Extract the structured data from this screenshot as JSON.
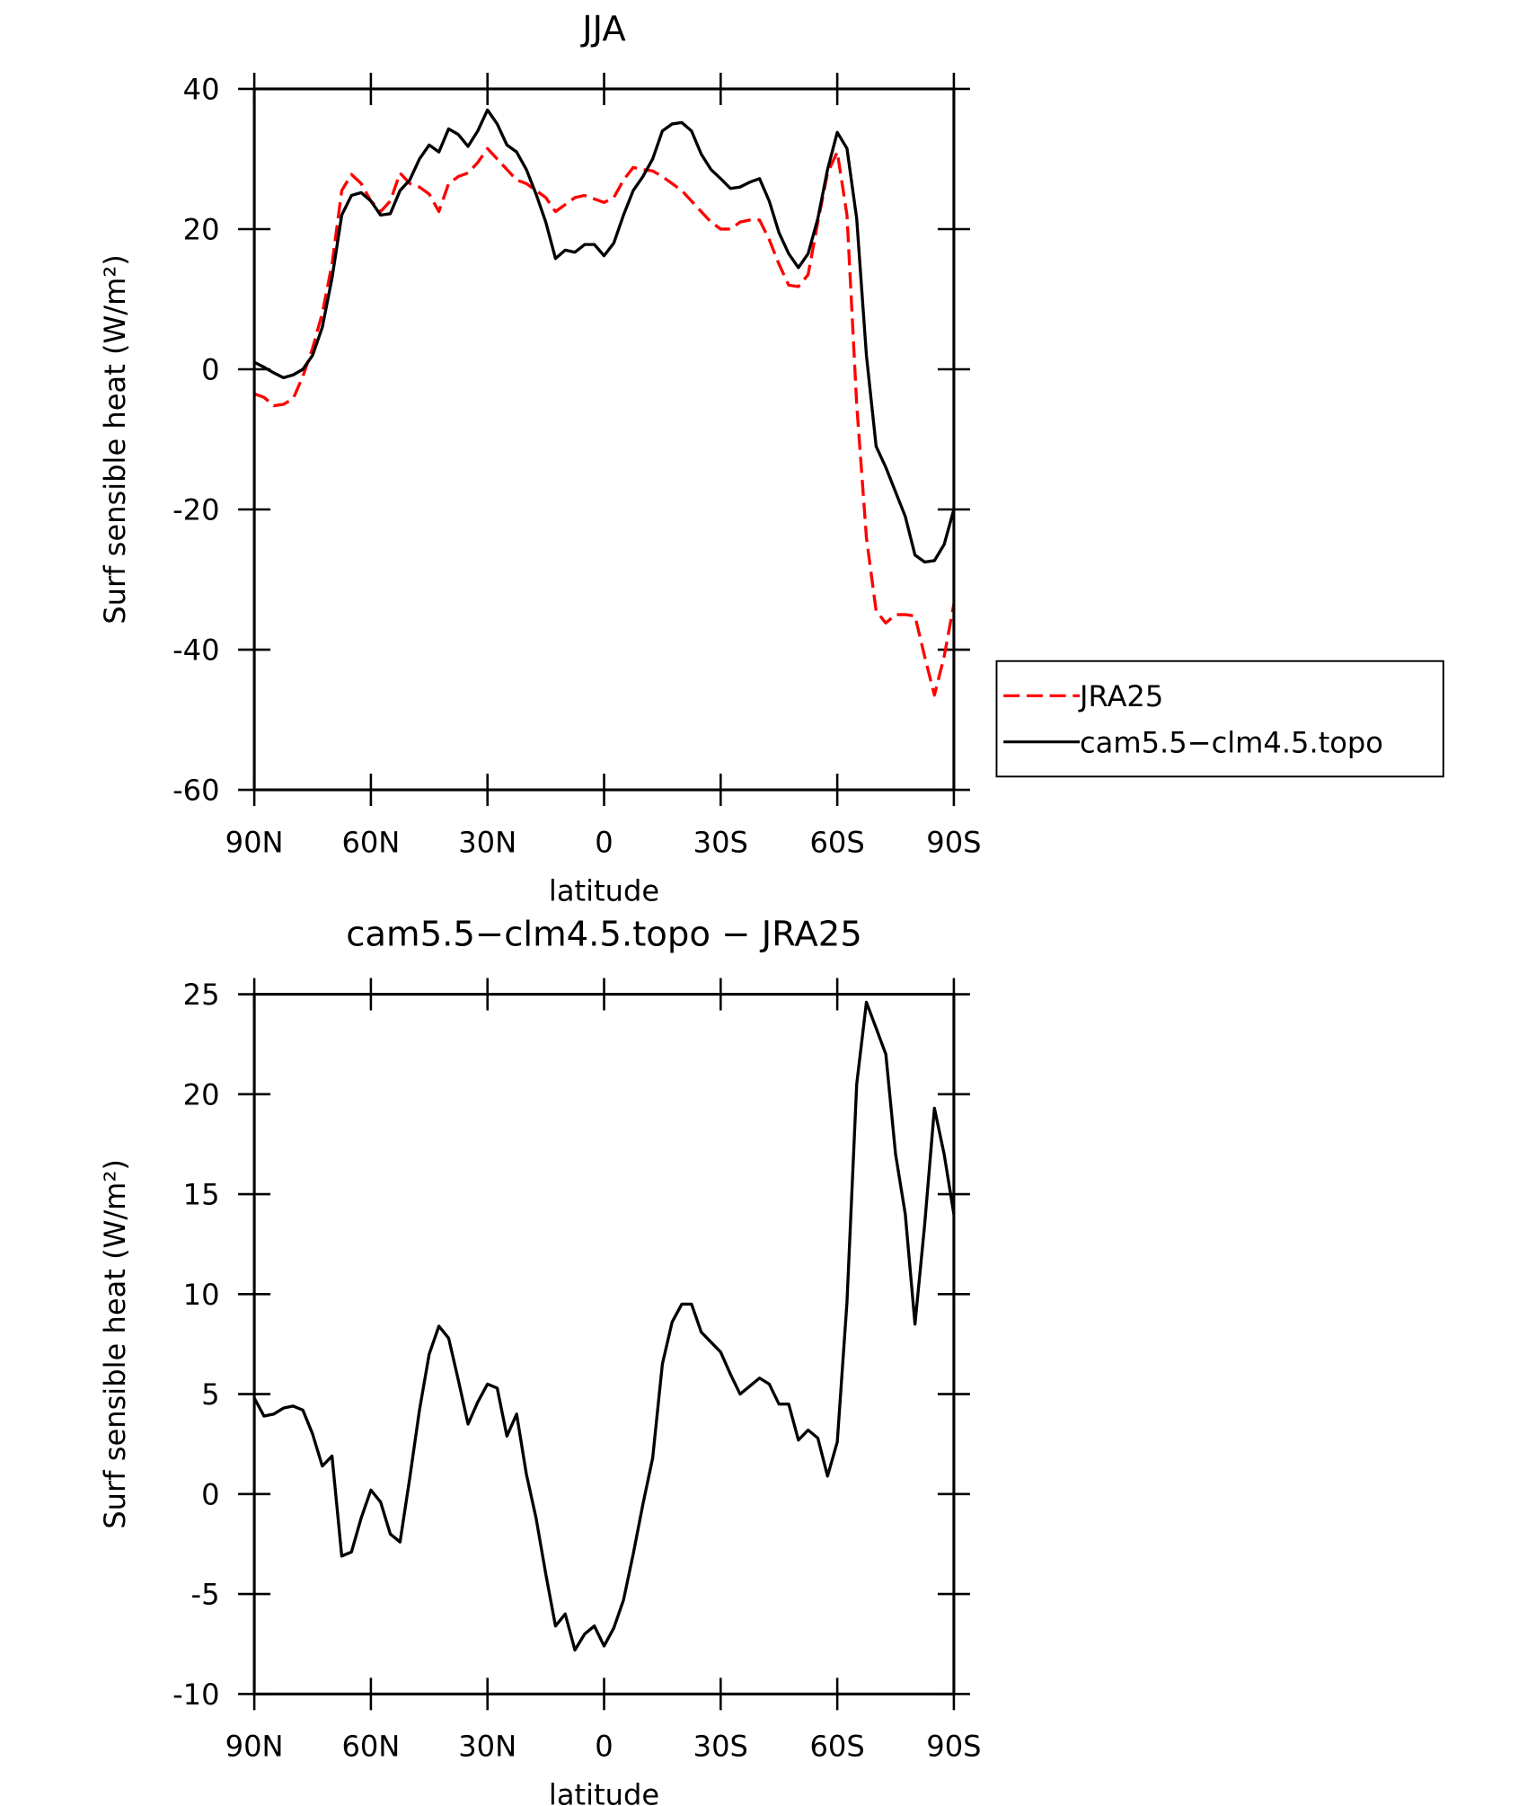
{
  "chart_data": [
    {
      "type": "line",
      "title": "JJA",
      "xlabel": "latitude",
      "ylabel": "Surf sensible heat (W/m²)",
      "x": [
        90,
        87.5,
        85,
        82.5,
        80,
        77.5,
        75,
        72.5,
        70,
        67.5,
        65,
        62.5,
        60,
        57.5,
        55,
        52.5,
        50,
        47.5,
        45,
        42.5,
        40,
        37.5,
        35,
        32.5,
        30,
        27.5,
        25,
        22.5,
        20,
        17.5,
        15,
        12.5,
        10,
        7.5,
        5,
        2.5,
        0,
        -2.5,
        -5,
        -7.5,
        -10,
        -12.5,
        -15,
        -17.5,
        -20,
        -22.5,
        -25,
        -27.5,
        -30,
        -32.5,
        -35,
        -37.5,
        -40,
        -42.5,
        -45,
        -47.5,
        -50,
        -52.5,
        -55,
        -57.5,
        -60,
        -62.5,
        -65,
        -67.5,
        -70,
        -72.5,
        -75,
        -77.5,
        -80,
        -82.5,
        -85,
        -87.5,
        -90
      ],
      "series": [
        {
          "name": "JRA25",
          "color": "#ff0000",
          "style": "dashed",
          "values": [
            -3.5,
            -4,
            -5.2,
            -5,
            -4.2,
            -1,
            3,
            8,
            15,
            25.5,
            27.8,
            26.5,
            24,
            22.5,
            24,
            28,
            26.5,
            26,
            25,
            22.5,
            26.5,
            27.5,
            28,
            29.5,
            31.5,
            30,
            28.5,
            27,
            26.5,
            25.5,
            24.5,
            22.5,
            23.5,
            24.5,
            24.8,
            24.3,
            23.8,
            24.5,
            27,
            28.8,
            28.5,
            28.3,
            27.5,
            26.5,
            25.5,
            24,
            22.5,
            21,
            20,
            20,
            21,
            21.3,
            21.3,
            18.5,
            15,
            12,
            11.8,
            13.5,
            21,
            28,
            31,
            22,
            -5,
            -24,
            -34.5,
            -36.2,
            -35,
            -35,
            -35.2,
            -41,
            -46.5,
            -41,
            -33.5
          ]
        },
        {
          "name": "cam5.5−clm4.5.topo",
          "color": "#000000",
          "style": "solid",
          "values": [
            1,
            0.3,
            -0.5,
            -1.2,
            -0.8,
            0,
            2,
            6,
            13,
            22,
            24.8,
            25.2,
            24,
            22,
            22.2,
            25.5,
            27,
            30,
            32,
            31,
            34.3,
            33.5,
            31.8,
            34,
            37,
            35,
            32,
            31,
            28.5,
            25,
            21,
            15.8,
            17,
            16.7,
            17.8,
            17.8,
            16.2,
            18,
            22,
            25.5,
            27.5,
            30,
            34,
            35,
            35.2,
            34,
            30.7,
            28.5,
            27.2,
            25.8,
            26,
            26.7,
            27.2,
            24,
            19.5,
            16.5,
            14.5,
            16.5,
            21.5,
            28.5,
            33.8,
            31.5,
            21.5,
            2,
            -11,
            -14,
            -17.5,
            -21,
            -26.5,
            -27.5,
            -27.3,
            -25,
            -20
          ]
        }
      ],
      "xlim": [
        90,
        -90
      ],
      "xticks": [
        {
          "value": 90,
          "label": "90N"
        },
        {
          "value": 60,
          "label": "60N"
        },
        {
          "value": 30,
          "label": "30N"
        },
        0,
        {
          "value": -30,
          "label": "30S"
        },
        {
          "value": -60,
          "label": "60S"
        },
        {
          "value": -90,
          "label": "90S"
        }
      ],
      "ylim": [
        -60,
        40
      ],
      "yticks": [
        -60,
        -40,
        -20,
        0,
        20,
        40
      ],
      "legend": "right"
    },
    {
      "type": "line",
      "title": "cam5.5−clm4.5.topo − JRA25",
      "xlabel": "latitude",
      "ylabel": "Surf sensible heat (W/m²)",
      "x": [
        90,
        87.5,
        85,
        82.5,
        80,
        77.5,
        75,
        72.5,
        70,
        67.5,
        65,
        62.5,
        60,
        57.5,
        55,
        52.5,
        50,
        47.5,
        45,
        42.5,
        40,
        37.5,
        35,
        32.5,
        30,
        27.5,
        25,
        22.5,
        20,
        17.5,
        15,
        12.5,
        10,
        7.5,
        5,
        2.5,
        0,
        -2.5,
        -5,
        -7.5,
        -10,
        -12.5,
        -15,
        -17.5,
        -20,
        -22.5,
        -25,
        -27.5,
        -30,
        -32.5,
        -35,
        -37.5,
        -40,
        -42.5,
        -45,
        -47.5,
        -50,
        -52.5,
        -55,
        -57.5,
        -60,
        -62.5,
        -65,
        -67.5,
        -70,
        -72.5,
        -75,
        -77.5,
        -80,
        -82.5,
        -85,
        -87.5,
        -90
      ],
      "values": [
        4.8,
        3.9,
        4,
        4.3,
        4.4,
        4.2,
        3,
        1.4,
        1.9,
        -3.1,
        -2.9,
        -1.2,
        0.2,
        -0.4,
        -2,
        -2.4,
        0.8,
        4.2,
        7,
        8.4,
        7.8,
        5.7,
        3.5,
        4.6,
        5.5,
        5.3,
        2.9,
        4,
        1,
        -1.2,
        -4,
        -6.6,
        -6,
        -7.8,
        -7,
        -6.6,
        -7.6,
        -6.7,
        -5.3,
        -3,
        -0.5,
        1.8,
        6.5,
        8.6,
        9.5,
        9.5,
        8.1,
        7.6,
        7.1,
        6,
        5,
        5.4,
        5.8,
        5.5,
        4.5,
        4.5,
        2.7,
        3.2,
        2.8,
        0.9,
        2.6,
        9.6,
        20.5,
        24.6,
        23.3,
        22,
        17,
        14,
        8.5,
        13.5,
        19.3,
        17,
        14
      ],
      "color": "#000000",
      "xlim": [
        90,
        -90
      ],
      "xticks": [
        {
          "value": 90,
          "label": "90N"
        },
        {
          "value": 60,
          "label": "60N"
        },
        {
          "value": 30,
          "label": "30N"
        },
        0,
        {
          "value": -30,
          "label": "30S"
        },
        {
          "value": -60,
          "label": "60S"
        },
        {
          "value": -90,
          "label": "90S"
        }
      ],
      "ylim": [
        -10,
        25
      ],
      "yticks": [
        -10,
        -5,
        0,
        5,
        10,
        15,
        20,
        25
      ]
    }
  ]
}
